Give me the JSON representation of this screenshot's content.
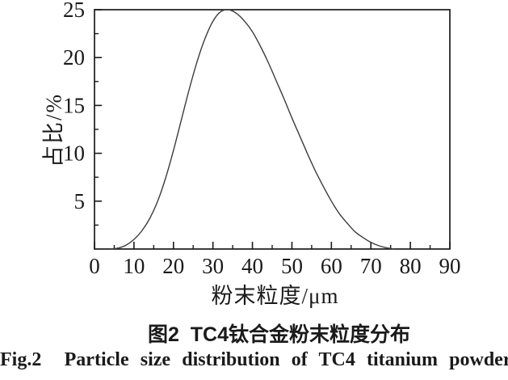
{
  "figure": {
    "caption_zh": "图2  TC4钛合金粉末粒度分布",
    "caption_en": "Fig.2  Particle size distribution of TC4 titanium powder"
  },
  "chart_data": {
    "type": "line",
    "title": "",
    "xlabel": "粉末粒度/μm",
    "ylabel": "占比/%",
    "xlim": [
      0,
      90
    ],
    "ylim": [
      0,
      25
    ],
    "xticks": [
      0,
      10,
      20,
      30,
      40,
      50,
      60,
      70,
      80,
      90
    ],
    "xticks_minor": [
      5,
      15,
      25,
      35,
      45,
      55,
      65,
      75,
      85
    ],
    "yticks": [
      5,
      10,
      15,
      20,
      25
    ],
    "yticks_minor": [
      2.5,
      7.5,
      12.5,
      17.5,
      22.5
    ],
    "layout": {
      "frame": "box",
      "grid": false,
      "legend": false,
      "tick_direction": "in"
    },
    "colors": {
      "axis": "#1a1a1a",
      "curve": "#3c3c3c",
      "text": "#1a1a1a"
    },
    "series": [
      {
        "x": [
          4,
          6,
          8,
          10,
          12,
          14,
          16,
          18,
          20,
          22,
          24,
          26,
          28,
          30,
          32,
          34,
          36,
          38,
          40,
          42,
          44,
          46,
          48,
          50,
          52,
          54,
          56,
          58,
          60,
          62,
          64,
          66,
          68,
          70,
          72,
          74,
          76
        ],
        "y": [
          0,
          0.1,
          0.4,
          1.0,
          1.9,
          3.2,
          5.0,
          7.4,
          10.3,
          13.5,
          16.7,
          19.6,
          22.0,
          23.8,
          24.8,
          25.0,
          24.6,
          23.8,
          22.7,
          21.2,
          19.5,
          17.6,
          15.7,
          13.7,
          11.8,
          9.9,
          8.1,
          6.5,
          5.0,
          3.7,
          2.7,
          1.8,
          1.2,
          0.7,
          0.35,
          0.12,
          0
        ]
      }
    ],
    "peak": {
      "x": 34,
      "y": 25
    },
    "curve_nonzero_range": [
      5,
      76
    ]
  }
}
